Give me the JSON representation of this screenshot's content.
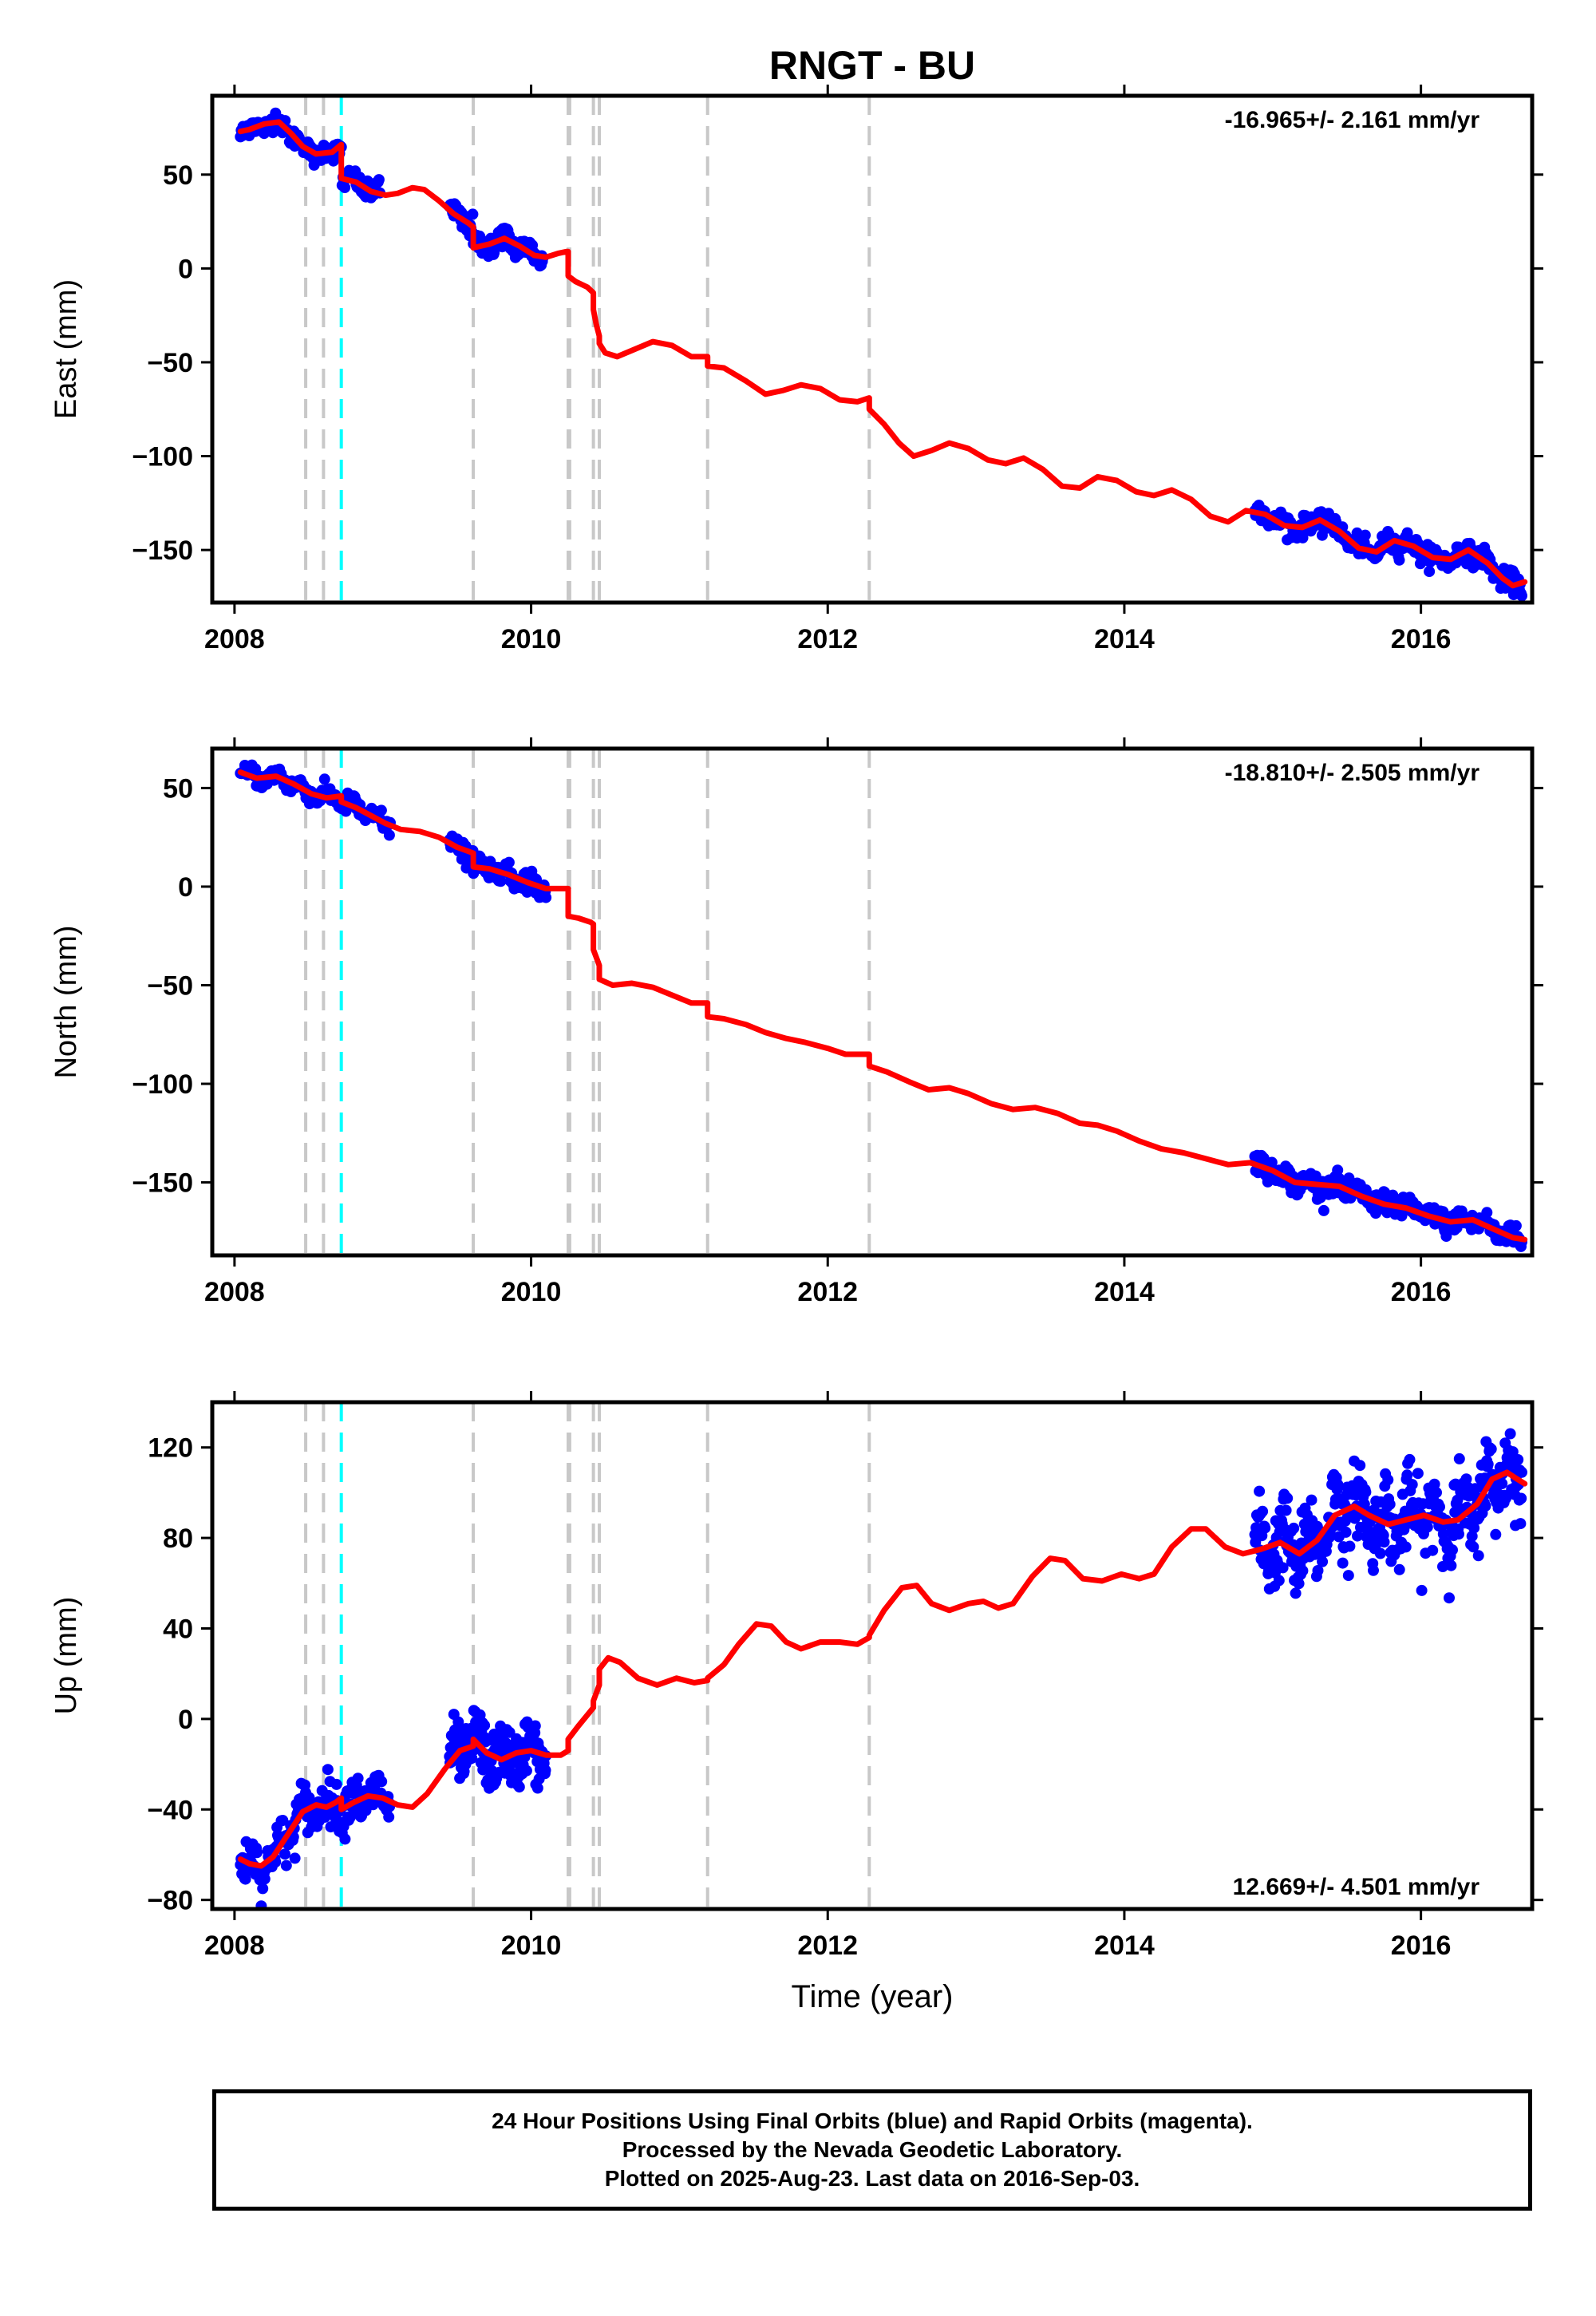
{
  "title": "RNGT - BU",
  "colors": {
    "final_orbits": "#0000ff",
    "model": "#ff0000",
    "event_line": "#c8c8c8",
    "antenna_change_line": "#00ffff"
  },
  "caption": {
    "line1": "24 Hour Positions Using Final Orbits (blue) and Rapid Orbits (magenta).",
    "line2": "Processed by the Nevada Geodetic Laboratory.",
    "line3": "Plotted on 2025-Aug-23. Last data on 2016-Sep-03."
  },
  "chart_data": [
    {
      "type": "scatter",
      "component": "east",
      "ylabel": "East (mm)",
      "xlabel": "",
      "rate_label": "-16.965+/- 2.161 mm/yr",
      "rate_position": "top-right",
      "xlim": [
        2007.85,
        2016.75
      ],
      "ylim": [
        -178,
        92
      ],
      "yticks": [
        -150,
        -100,
        -50,
        0,
        50
      ],
      "xticks": [
        2008,
        2010,
        2012,
        2014,
        2016
      ],
      "grid": false,
      "event_lines": [
        2008.48,
        2008.6,
        2009.61,
        2010.25,
        2010.26,
        2010.42,
        2010.46,
        2011.19,
        2012.28
      ],
      "antenna_lines": [
        2008.72
      ],
      "model_points": [
        [
          2008.04,
          73
        ],
        [
          2008.1,
          74
        ],
        [
          2008.2,
          77
        ],
        [
          2008.3,
          78
        ],
        [
          2008.38,
          72
        ],
        [
          2008.46,
          65
        ],
        [
          2008.55,
          61
        ],
        [
          2008.66,
          62
        ],
        [
          2008.72,
          66
        ],
        [
          2008.72,
          48
        ],
        [
          2008.82,
          46
        ],
        [
          2008.92,
          41
        ],
        [
          2009.02,
          39
        ],
        [
          2009.1,
          40
        ],
        [
          2009.2,
          43
        ],
        [
          2009.28,
          42
        ],
        [
          2009.38,
          36
        ],
        [
          2009.48,
          29
        ],
        [
          2009.58,
          24
        ],
        [
          2009.61,
          22
        ],
        [
          2009.61,
          11
        ],
        [
          2009.72,
          13
        ],
        [
          2009.82,
          16
        ],
        [
          2009.92,
          12
        ],
        [
          2010.02,
          7
        ],
        [
          2010.1,
          6
        ],
        [
          2010.18,
          8
        ],
        [
          2010.24,
          9
        ],
        [
          2010.25,
          9
        ],
        [
          2010.25,
          -4
        ],
        [
          2010.3,
          -7
        ],
        [
          2010.38,
          -10
        ],
        [
          2010.42,
          -13
        ],
        [
          2010.42,
          -22
        ],
        [
          2010.44,
          -30
        ],
        [
          2010.46,
          -36
        ],
        [
          2010.46,
          -40
        ],
        [
          2010.5,
          -45
        ],
        [
          2010.58,
          -47
        ],
        [
          2010.7,
          -43
        ],
        [
          2010.82,
          -39
        ],
        [
          2010.95,
          -41
        ],
        [
          2011.08,
          -47
        ],
        [
          2011.19,
          -47
        ],
        [
          2011.19,
          -52
        ],
        [
          2011.3,
          -53
        ],
        [
          2011.45,
          -60
        ],
        [
          2011.58,
          -67
        ],
        [
          2011.7,
          -65
        ],
        [
          2011.82,
          -62
        ],
        [
          2011.95,
          -64
        ],
        [
          2012.08,
          -70
        ],
        [
          2012.2,
          -71
        ],
        [
          2012.28,
          -69
        ],
        [
          2012.28,
          -75
        ],
        [
          2012.38,
          -83
        ],
        [
          2012.48,
          -93
        ],
        [
          2012.58,
          -100
        ],
        [
          2012.7,
          -97
        ],
        [
          2012.82,
          -93
        ],
        [
          2012.95,
          -96
        ],
        [
          2013.08,
          -102
        ],
        [
          2013.2,
          -104
        ],
        [
          2013.32,
          -101
        ],
        [
          2013.45,
          -107
        ],
        [
          2013.58,
          -116
        ],
        [
          2013.7,
          -117
        ],
        [
          2013.82,
          -111
        ],
        [
          2013.95,
          -113
        ],
        [
          2014.08,
          -119
        ],
        [
          2014.2,
          -121
        ],
        [
          2014.32,
          -118
        ],
        [
          2014.45,
          -123
        ],
        [
          2014.58,
          -132
        ],
        [
          2014.7,
          -135
        ],
        [
          2014.82,
          -129
        ],
        [
          2014.95,
          -131
        ],
        [
          2015.08,
          -137
        ],
        [
          2015.2,
          -138
        ],
        [
          2015.32,
          -134
        ],
        [
          2015.45,
          -140
        ],
        [
          2015.58,
          -149
        ],
        [
          2015.7,
          -151
        ],
        [
          2015.82,
          -145
        ],
        [
          2015.95,
          -148
        ],
        [
          2016.08,
          -154
        ],
        [
          2016.2,
          -155
        ],
        [
          2016.32,
          -150
        ],
        [
          2016.45,
          -157
        ],
        [
          2016.55,
          -165
        ],
        [
          2016.62,
          -169
        ],
        [
          2016.7,
          -167
        ]
      ],
      "data_segments": [
        {
          "t0": 2008.04,
          "t1": 2008.98,
          "noise": 2.5,
          "count": 160
        },
        {
          "t0": 2009.45,
          "t1": 2010.08,
          "noise": 2.8,
          "count": 150
        },
        {
          "t0": 2014.88,
          "t1": 2016.68,
          "noise": 2.6,
          "count": 330
        }
      ]
    },
    {
      "type": "scatter",
      "component": "north",
      "ylabel": "North (mm)",
      "xlabel": "",
      "rate_label": "-18.810+/- 2.505 mm/yr",
      "rate_position": "top-right",
      "xlim": [
        2007.85,
        2016.75
      ],
      "ylim": [
        -187,
        70
      ],
      "yticks": [
        -150,
        -100,
        -50,
        0,
        50
      ],
      "xticks": [
        2008,
        2010,
        2012,
        2014,
        2016
      ],
      "grid": false,
      "event_lines": [
        2008.48,
        2008.6,
        2009.61,
        2010.25,
        2010.26,
        2010.42,
        2010.46,
        2011.19,
        2012.28
      ],
      "antenna_lines": [
        2008.72
      ],
      "model_points": [
        [
          2008.04,
          58
        ],
        [
          2008.15,
          55
        ],
        [
          2008.28,
          56
        ],
        [
          2008.4,
          52
        ],
        [
          2008.52,
          47
        ],
        [
          2008.62,
          45
        ],
        [
          2008.72,
          46
        ],
        [
          2008.72,
          43
        ],
        [
          2008.82,
          40
        ],
        [
          2008.92,
          36
        ],
        [
          2009.02,
          32
        ],
        [
          2009.12,
          29
        ],
        [
          2009.25,
          28
        ],
        [
          2009.38,
          25
        ],
        [
          2009.5,
          20
        ],
        [
          2009.61,
          17
        ],
        [
          2009.61,
          10
        ],
        [
          2009.72,
          9
        ],
        [
          2009.85,
          6
        ],
        [
          2009.98,
          2
        ],
        [
          2010.1,
          -1
        ],
        [
          2010.2,
          -1
        ],
        [
          2010.25,
          -1
        ],
        [
          2010.25,
          -15
        ],
        [
          2010.32,
          -16
        ],
        [
          2010.4,
          -18
        ],
        [
          2010.42,
          -19
        ],
        [
          2010.42,
          -32
        ],
        [
          2010.45,
          -38
        ],
        [
          2010.46,
          -40
        ],
        [
          2010.46,
          -47
        ],
        [
          2010.55,
          -50
        ],
        [
          2010.68,
          -49
        ],
        [
          2010.82,
          -51
        ],
        [
          2010.95,
          -55
        ],
        [
          2011.08,
          -59
        ],
        [
          2011.19,
          -59
        ],
        [
          2011.19,
          -66
        ],
        [
          2011.3,
          -67
        ],
        [
          2011.45,
          -70
        ],
        [
          2011.58,
          -74
        ],
        [
          2011.72,
          -77
        ],
        [
          2011.85,
          -79
        ],
        [
          2012.0,
          -82
        ],
        [
          2012.12,
          -85
        ],
        [
          2012.28,
          -85
        ],
        [
          2012.28,
          -91
        ],
        [
          2012.4,
          -94
        ],
        [
          2012.55,
          -99
        ],
        [
          2012.68,
          -103
        ],
        [
          2012.82,
          -102
        ],
        [
          2012.95,
          -105
        ],
        [
          2013.1,
          -110
        ],
        [
          2013.25,
          -113
        ],
        [
          2013.4,
          -112
        ],
        [
          2013.55,
          -115
        ],
        [
          2013.7,
          -120
        ],
        [
          2013.82,
          -121
        ],
        [
          2013.95,
          -124
        ],
        [
          2014.1,
          -129
        ],
        [
          2014.25,
          -133
        ],
        [
          2014.4,
          -135
        ],
        [
          2014.55,
          -138
        ],
        [
          2014.7,
          -141
        ],
        [
          2014.85,
          -140
        ],
        [
          2015.0,
          -144
        ],
        [
          2015.15,
          -150
        ],
        [
          2015.3,
          -151
        ],
        [
          2015.45,
          -152
        ],
        [
          2015.6,
          -157
        ],
        [
          2015.75,
          -161
        ],
        [
          2015.9,
          -163
        ],
        [
          2016.05,
          -167
        ],
        [
          2016.2,
          -170
        ],
        [
          2016.35,
          -169
        ],
        [
          2016.5,
          -174
        ],
        [
          2016.62,
          -178
        ],
        [
          2016.7,
          -179
        ]
      ],
      "data_segments": [
        {
          "t0": 2008.04,
          "t1": 2009.05,
          "noise": 2.3,
          "count": 170
        },
        {
          "t0": 2009.45,
          "t1": 2010.1,
          "noise": 2.5,
          "count": 150
        },
        {
          "t0": 2014.88,
          "t1": 2016.68,
          "noise": 2.7,
          "count": 330
        }
      ]
    },
    {
      "type": "scatter",
      "component": "up",
      "ylabel": "Up (mm)",
      "xlabel": "Time (year)",
      "rate_label": "12.669+/- 4.501 mm/yr",
      "rate_position": "bottom-right",
      "xlim": [
        2007.85,
        2016.75
      ],
      "ylim": [
        -84,
        140
      ],
      "yticks": [
        -80,
        -40,
        0,
        40,
        80,
        120
      ],
      "xticks": [
        2008,
        2010,
        2012,
        2014,
        2016
      ],
      "grid": false,
      "event_lines": [
        2008.48,
        2008.6,
        2009.61,
        2010.25,
        2010.26,
        2010.42,
        2010.46,
        2011.19,
        2012.28
      ],
      "antenna_lines": [
        2008.72
      ],
      "model_points": [
        [
          2008.04,
          -62
        ],
        [
          2008.1,
          -64
        ],
        [
          2008.18,
          -65
        ],
        [
          2008.26,
          -61
        ],
        [
          2008.36,
          -51
        ],
        [
          2008.46,
          -41
        ],
        [
          2008.55,
          -38
        ],
        [
          2008.62,
          -39
        ],
        [
          2008.68,
          -37
        ],
        [
          2008.72,
          -35
        ],
        [
          2008.72,
          -40
        ],
        [
          2008.8,
          -37
        ],
        [
          2008.9,
          -34
        ],
        [
          2009.0,
          -35
        ],
        [
          2009.1,
          -38
        ],
        [
          2009.2,
          -39
        ],
        [
          2009.3,
          -33
        ],
        [
          2009.42,
          -22
        ],
        [
          2009.52,
          -14
        ],
        [
          2009.61,
          -12
        ],
        [
          2009.61,
          -9
        ],
        [
          2009.7,
          -15
        ],
        [
          2009.8,
          -18
        ],
        [
          2009.9,
          -15
        ],
        [
          2010.0,
          -14
        ],
        [
          2010.1,
          -16
        ],
        [
          2010.2,
          -16
        ],
        [
          2010.25,
          -14
        ],
        [
          2010.25,
          -9
        ],
        [
          2010.32,
          -3
        ],
        [
          2010.42,
          5
        ],
        [
          2010.42,
          8
        ],
        [
          2010.46,
          15
        ],
        [
          2010.46,
          22
        ],
        [
          2010.52,
          27
        ],
        [
          2010.6,
          25
        ],
        [
          2010.72,
          18
        ],
        [
          2010.85,
          15
        ],
        [
          2010.98,
          18
        ],
        [
          2011.1,
          16
        ],
        [
          2011.19,
          17
        ],
        [
          2011.19,
          18
        ],
        [
          2011.3,
          24
        ],
        [
          2011.4,
          33
        ],
        [
          2011.52,
          42
        ],
        [
          2011.62,
          41
        ],
        [
          2011.72,
          34
        ],
        [
          2011.82,
          31
        ],
        [
          2011.95,
          34
        ],
        [
          2012.08,
          34
        ],
        [
          2012.2,
          33
        ],
        [
          2012.28,
          36
        ],
        [
          2012.28,
          37
        ],
        [
          2012.38,
          48
        ],
        [
          2012.5,
          58
        ],
        [
          2012.6,
          59
        ],
        [
          2012.7,
          51
        ],
        [
          2012.82,
          48
        ],
        [
          2012.95,
          51
        ],
        [
          2013.05,
          52
        ],
        [
          2013.15,
          49
        ],
        [
          2013.25,
          51
        ],
        [
          2013.38,
          63
        ],
        [
          2013.5,
          71
        ],
        [
          2013.6,
          70
        ],
        [
          2013.72,
          62
        ],
        [
          2013.85,
          61
        ],
        [
          2013.98,
          64
        ],
        [
          2014.1,
          62
        ],
        [
          2014.2,
          64
        ],
        [
          2014.32,
          76
        ],
        [
          2014.45,
          84
        ],
        [
          2014.55,
          84
        ],
        [
          2014.68,
          76
        ],
        [
          2014.8,
          73
        ],
        [
          2014.92,
          75
        ],
        [
          2015.05,
          78
        ],
        [
          2015.18,
          73
        ],
        [
          2015.3,
          79
        ],
        [
          2015.42,
          90
        ],
        [
          2015.55,
          94
        ],
        [
          2015.65,
          90
        ],
        [
          2015.78,
          86
        ],
        [
          2015.9,
          88
        ],
        [
          2016.02,
          90
        ],
        [
          2016.15,
          87
        ],
        [
          2016.25,
          88
        ],
        [
          2016.38,
          95
        ],
        [
          2016.48,
          106
        ],
        [
          2016.58,
          109
        ],
        [
          2016.65,
          106
        ],
        [
          2016.7,
          104
        ]
      ],
      "data_segments": [
        {
          "t0": 2008.04,
          "t1": 2009.05,
          "noise": 5.0,
          "count": 210
        },
        {
          "t0": 2009.45,
          "t1": 2010.1,
          "noise": 6.0,
          "count": 200
        },
        {
          "t0": 2014.88,
          "t1": 2016.68,
          "noise": 8.5,
          "count": 420
        }
      ]
    }
  ]
}
